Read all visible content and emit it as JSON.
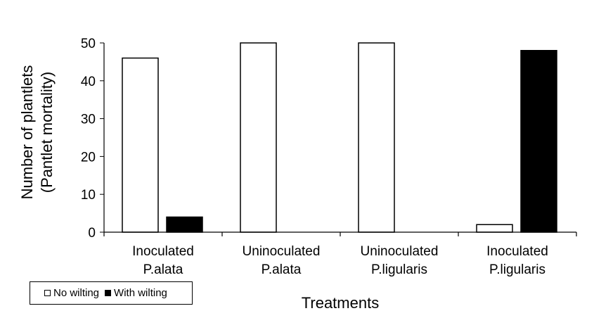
{
  "chart_data": {
    "type": "bar",
    "categories": [
      [
        "Inoculated",
        "P.alata"
      ],
      [
        "Uninoculated",
        "P.alata"
      ],
      [
        "Uninoculated",
        "P.ligularis"
      ],
      [
        "Inoculated",
        "P.ligularis"
      ]
    ],
    "series": [
      {
        "name": "No wilting",
        "values": [
          46,
          50,
          50,
          2
        ],
        "color": "#ffffff"
      },
      {
        "name": "With wilting",
        "values": [
          4,
          0,
          0,
          48
        ],
        "color": "#000000"
      }
    ],
    "xlabel": "Treatments",
    "ylabel": [
      "Number of plantlets",
      "(Pantlet mortality)"
    ],
    "ylim": [
      0,
      50
    ],
    "yticks": [
      0,
      10,
      20,
      30,
      40,
      50
    ],
    "grid": false,
    "legend_position": "bottom-left"
  }
}
